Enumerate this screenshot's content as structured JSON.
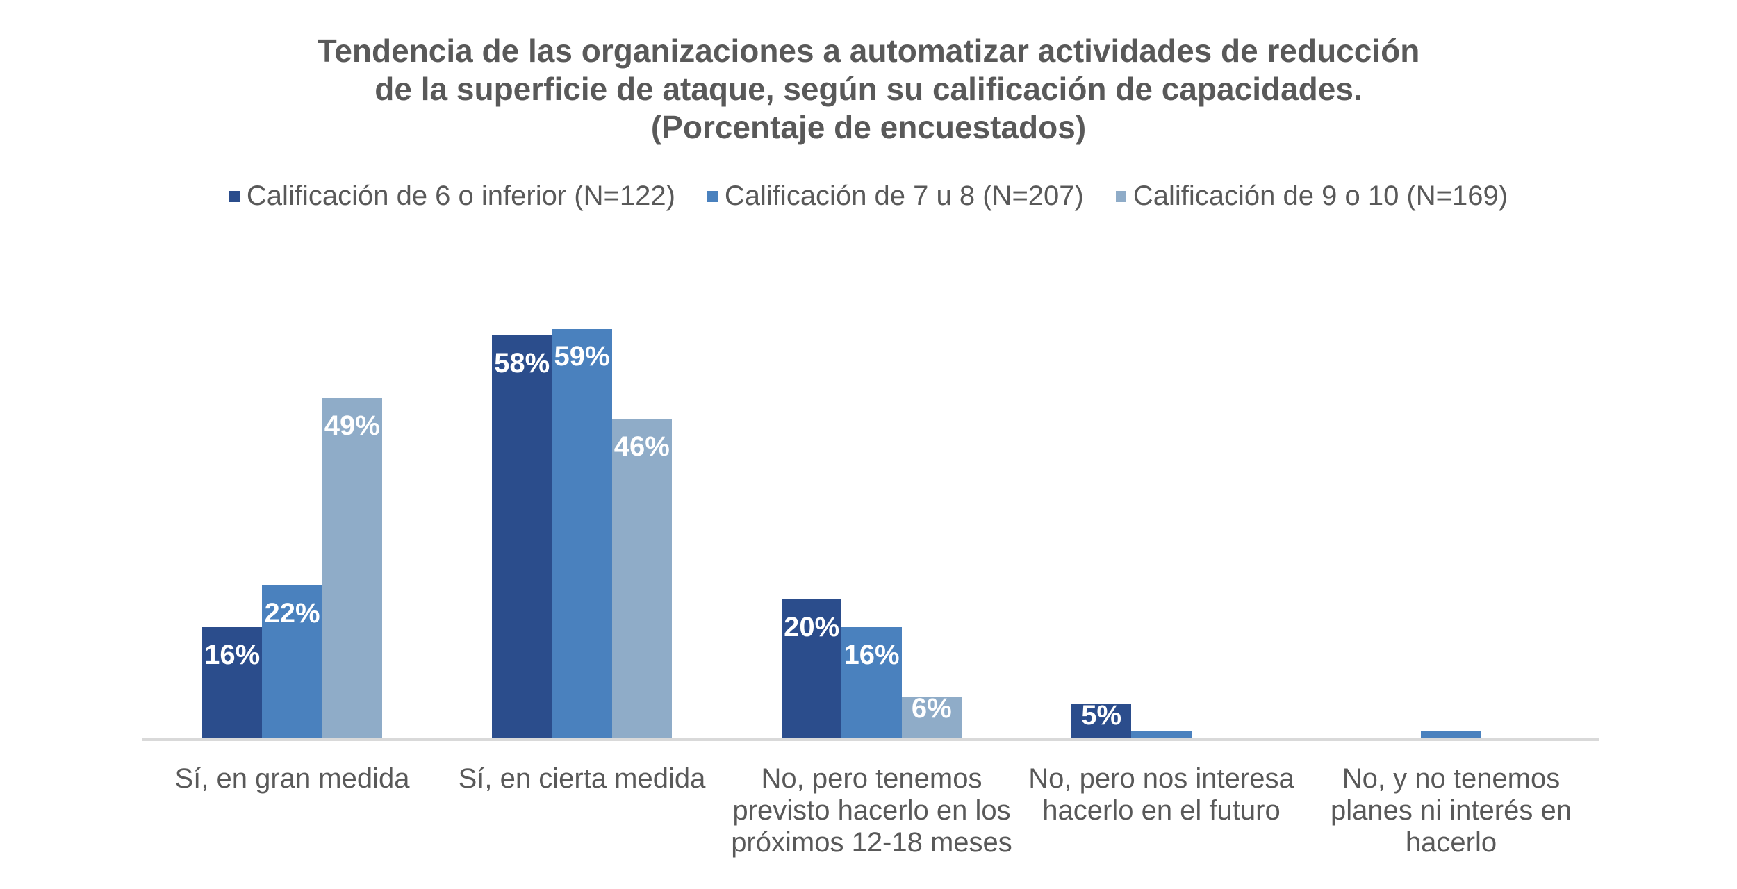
{
  "title": {
    "line1": "Tendencia de las organizaciones a automatizar actividades de reducción",
    "line2": "de la superficie de ataque, según su calificación de capacidades.",
    "line3": "(Porcentaje de encuestados)"
  },
  "legend": {
    "items": [
      {
        "label": "Calificación de 6 o inferior (N=122)",
        "color": "#2B4D8C"
      },
      {
        "label": "Calificación de 7 u 8 (N=207)",
        "color": "#4A81BE"
      },
      {
        "label": "Calificación de 9 o 10 (N=169)",
        "color": "#8FACC8"
      }
    ]
  },
  "chart_data": {
    "type": "bar",
    "title": "Tendencia de las organizaciones a automatizar actividades de reducción de la superficie de ataque, según su calificación de capacidades. (Porcentaje de encuestados)",
    "categories": [
      "Sí, en gran medida",
      "Sí, en cierta medida",
      "No, pero tenemos previsto hacerlo en los próximos 12-18 meses",
      "No, pero nos interesa hacerlo en el futuro",
      "No, y no tenemos planes ni interés en hacerlo"
    ],
    "category_lines": [
      [
        "Sí, en gran medida"
      ],
      [
        "Sí, en cierta medida"
      ],
      [
        "No, pero tenemos",
        "previsto hacerlo en los",
        "próximos 12-18 meses"
      ],
      [
        "No, pero nos interesa",
        "hacerlo en el futuro"
      ],
      [
        "No, y no tenemos",
        "planes ni interés en",
        "hacerlo"
      ]
    ],
    "series": [
      {
        "name": "Calificación de 6 o inferior (N=122)",
        "color": "#2B4D8C",
        "values": [
          16,
          58,
          20,
          5,
          0
        ],
        "labels": [
          "16%",
          "58%",
          "20%",
          "5%",
          ""
        ]
      },
      {
        "name": "Calificación de 7 u 8 (N=207)",
        "color": "#4A81BE",
        "values": [
          22,
          59,
          16,
          1,
          1
        ],
        "labels": [
          "22%",
          "59%",
          "16%",
          "",
          ""
        ]
      },
      {
        "name": "Calificación de 9 o 10 (N=169)",
        "color": "#8FACC8",
        "values": [
          49,
          46,
          6,
          0,
          0
        ],
        "labels": [
          "49%",
          "46%",
          "6%",
          "",
          ""
        ]
      }
    ],
    "xlabel": "",
    "ylabel": "",
    "ylim": [
      0,
      60
    ],
    "grid": false,
    "legend_position": "top",
    "value_label_color": "#FFFFFF",
    "axis_line_color": "#D9D9D9",
    "text_color": "#595959"
  }
}
